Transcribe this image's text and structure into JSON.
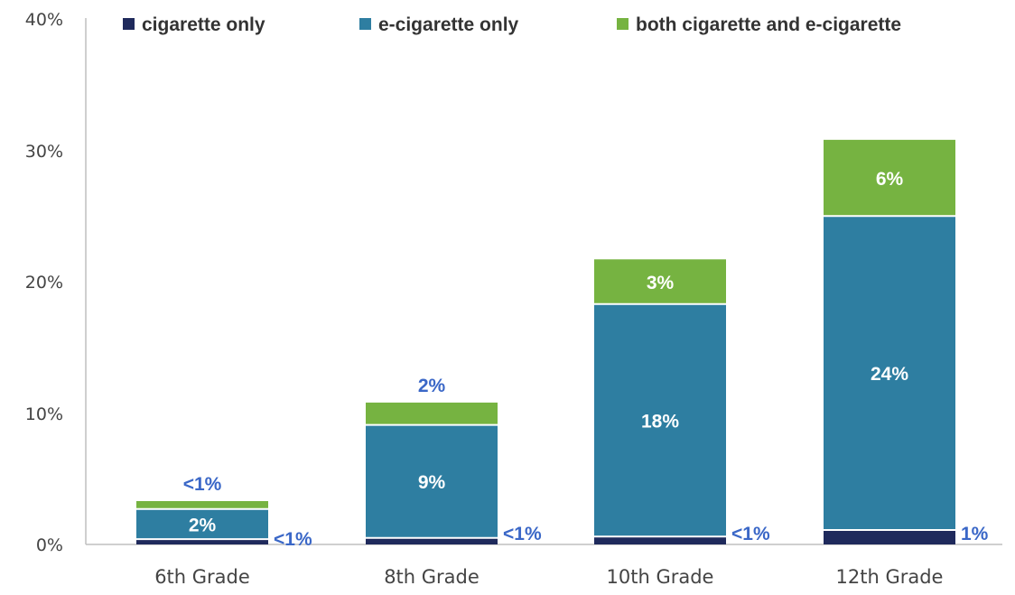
{
  "chart_data": {
    "type": "bar",
    "stacked": true,
    "categories": [
      "6th Grade",
      "8th Grade",
      "10th Grade",
      "12th Grade"
    ],
    "series": [
      {
        "name": "cigarette only",
        "color": "#1f2a5c",
        "values": [
          0.4,
          0.5,
          0.6,
          1.1
        ],
        "labels": [
          "<1%",
          "<1%",
          "<1%",
          "1%"
        ]
      },
      {
        "name": "e-cigarette only",
        "color": "#2e7ea1",
        "values": [
          2.3,
          8.6,
          17.7,
          23.9
        ],
        "labels": [
          "2%",
          "9%",
          "18%",
          "24%"
        ]
      },
      {
        "name": "both cigarette and e-cigarette",
        "color": "#76b341",
        "values": [
          0.6,
          1.7,
          3.4,
          5.8
        ],
        "labels": [
          "<1%",
          "2%",
          "3%",
          "6%"
        ]
      }
    ],
    "ylim": [
      0,
      40
    ],
    "yticks": [
      "0%",
      "10%",
      "20%",
      "30%",
      "40%"
    ],
    "legend_position": "top",
    "grid": false
  }
}
